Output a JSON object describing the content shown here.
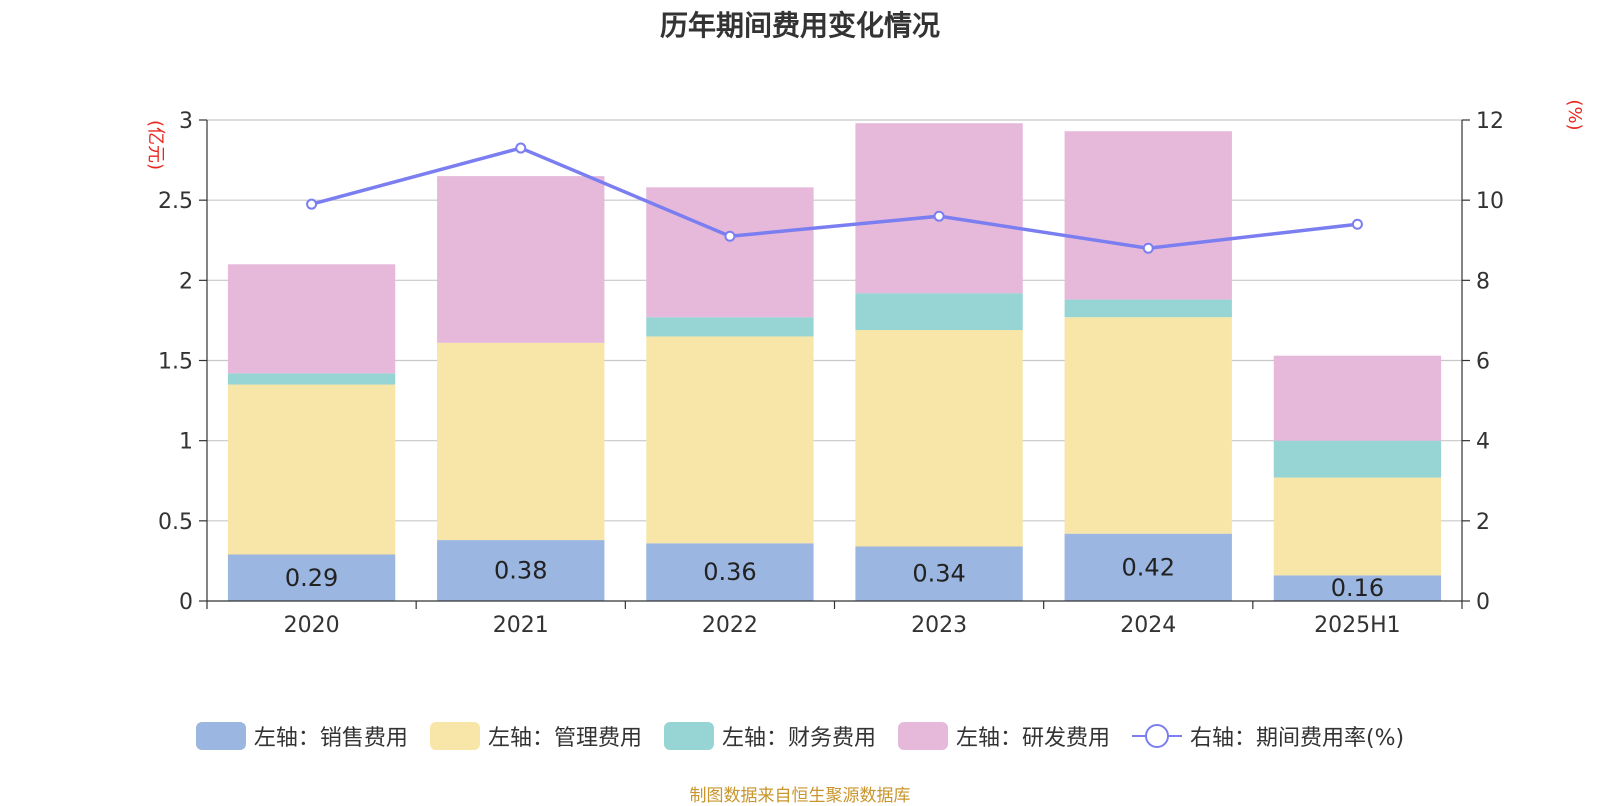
{
  "chart_data": {
    "type": "bar",
    "title": "历年期间费用变化情况",
    "categories": [
      "2020",
      "2021",
      "2022",
      "2023",
      "2024",
      "2025H1"
    ],
    "y_left_label": "(亿元)",
    "y_right_label": "(%)",
    "y_left_range": [
      0,
      3
    ],
    "y_left_ticks": [
      "0",
      "0.5",
      "1",
      "1.5",
      "2",
      "2.5",
      "3"
    ],
    "y_right_range": [
      0,
      12
    ],
    "y_right_ticks": [
      "0",
      "2",
      "4",
      "6",
      "8",
      "10",
      "12"
    ],
    "grid": true,
    "legend_position": "bottom",
    "stacked": true,
    "series": [
      {
        "name": "左轴：销售费用",
        "color": "#9bb6e0",
        "axis": "left",
        "values": [
          0.29,
          0.38,
          0.36,
          0.34,
          0.42,
          0.16
        ],
        "show_labels": true
      },
      {
        "name": "左轴：管理费用",
        "color": "#f7e6a7",
        "axis": "left",
        "values": [
          1.06,
          1.23,
          1.29,
          1.35,
          1.35,
          0.61
        ]
      },
      {
        "name": "左轴：财务费用",
        "color": "#97d4d4",
        "axis": "left",
        "values": [
          0.07,
          0.0,
          0.12,
          0.23,
          0.11,
          0.23
        ]
      },
      {
        "name": "左轴：研发费用",
        "color": "#e6b9da",
        "axis": "left",
        "values": [
          0.68,
          1.04,
          0.81,
          1.06,
          1.05,
          0.53
        ]
      },
      {
        "name": "右轴：期间费用率(%)",
        "color": "#7b7ef0",
        "axis": "right",
        "type": "line",
        "values": [
          9.9,
          11.3,
          9.1,
          9.6,
          8.8,
          9.4
        ]
      }
    ],
    "value_labels": [
      "0.29",
      "0.38",
      "0.36",
      "0.34",
      "0.42",
      "0.16"
    ],
    "source": "制图数据来自恒生聚源数据库"
  }
}
